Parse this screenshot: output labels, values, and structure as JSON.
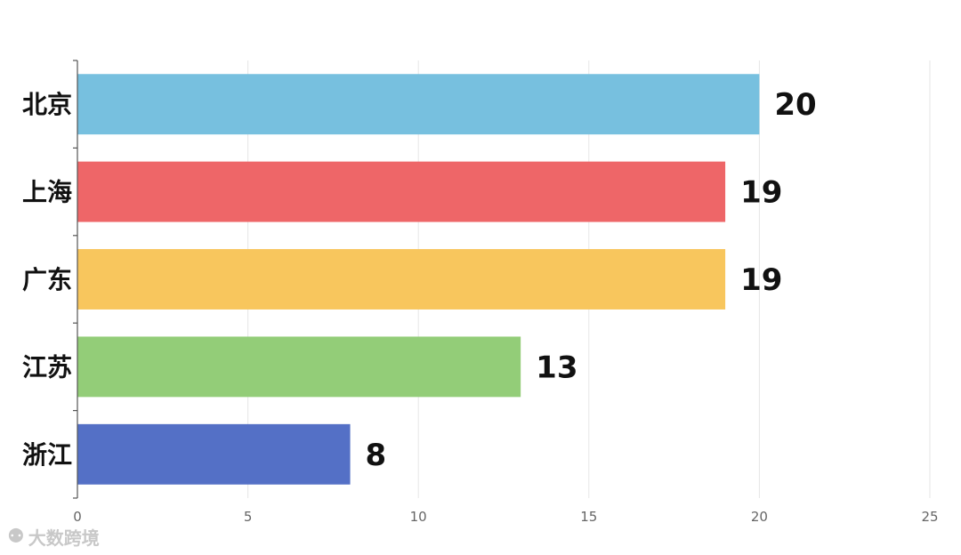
{
  "chart_data": {
    "type": "bar",
    "orientation": "horizontal",
    "categories": [
      "北京",
      "上海",
      "广东",
      "江苏",
      "浙江"
    ],
    "values": [
      20,
      19,
      19,
      13,
      8
    ],
    "colors": [
      "#77c0df",
      "#ee6668",
      "#f8c65d",
      "#93cd78",
      "#5470c6"
    ],
    "xlim": [
      0,
      25
    ],
    "xticks": [
      0,
      5,
      10,
      15,
      20,
      25
    ],
    "grid": true,
    "title": "",
    "xlabel": "",
    "ylabel": ""
  },
  "watermark": {
    "text": "大数跨境",
    "icon": "logo-icon"
  }
}
